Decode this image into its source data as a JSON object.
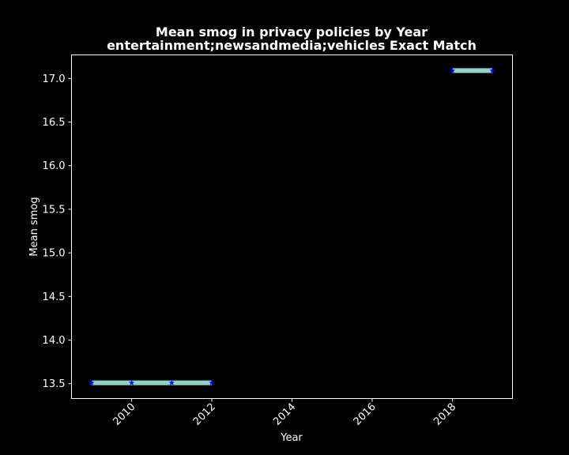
{
  "chart_data": {
    "type": "line",
    "title": "Mean smog in privacy policies by Year",
    "subtitle": "entertainment;newsandmedia;vehicles Exact Match",
    "xlabel": "Year",
    "ylabel": "Mean smog",
    "xlim": [
      2008.5,
      2019.5
    ],
    "ylim": [
      13.33,
      17.27
    ],
    "x_ticks": [
      2010,
      2012,
      2014,
      2016,
      2018
    ],
    "y_ticks": [
      13.5,
      14.0,
      14.5,
      15.0,
      15.5,
      16.0,
      16.5,
      17.0
    ],
    "grid": false,
    "series": [
      {
        "segments": [
          {
            "x": [
              2009,
              2010,
              2011,
              2012
            ],
            "y": [
              13.51,
              13.51,
              13.51,
              13.51
            ]
          },
          {
            "x": [
              2018,
              2019
            ],
            "y": [
              17.09,
              17.09
            ]
          }
        ],
        "line_color": "#8dd3c7",
        "marker": "star",
        "marker_color": "#0000ff"
      }
    ],
    "colors": {
      "background": "#000000",
      "foreground": "#ffffff"
    }
  }
}
